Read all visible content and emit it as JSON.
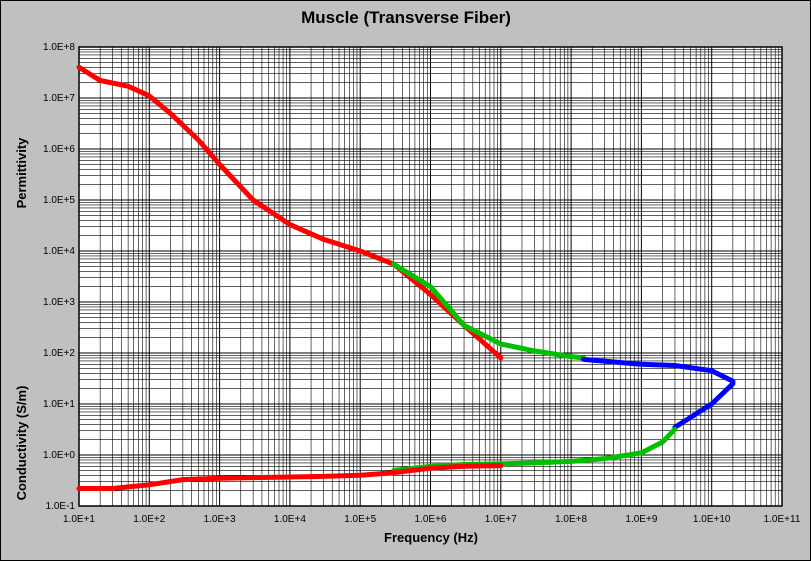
{
  "chart_data": {
    "type": "line",
    "title": "Muscle (Transverse Fiber)",
    "xlabel": "Frequency (Hz)",
    "ylabel_upper": "Permittivity",
    "ylabel_lower": "Conductivity (S/m)",
    "x_scale": "log",
    "y_scale": "log",
    "xlim": [
      10,
      100000000000
    ],
    "ylim": [
      0.1,
      100000000
    ],
    "x_tick_labels": [
      "1.0E+1",
      "1.0E+2",
      "1.0E+3",
      "1.0E+4",
      "1.0E+5",
      "1.0E+6",
      "1.0E+7",
      "1.0E+8",
      "1.0E+9",
      "1.0E+10",
      "1.0E+11"
    ],
    "y_tick_labels": [
      "1.0E-1",
      "1.0E+0",
      "1.0E+1",
      "1.0E+2",
      "1.0E+3",
      "1.0E+4",
      "1.0E+5",
      "1.0E+6",
      "1.0E+7",
      "1.0E+8"
    ],
    "grid": true,
    "background": "#ffffff",
    "frame_color": "#c0c0c0",
    "series": [
      {
        "quantity": "permittivity",
        "color": "#ff0000",
        "x": [
          10,
          20,
          50,
          100,
          200,
          500,
          1000,
          3000,
          10000,
          30000,
          100000,
          300000,
          1000000,
          3000000,
          10000000
        ],
        "y": [
          40000000,
          22000000,
          17000000,
          11000000,
          5000000,
          1500000,
          500000,
          100000,
          33000,
          17000,
          10000,
          5500,
          1400,
          350,
          80
        ]
      },
      {
        "quantity": "permittivity",
        "color": "#00c000",
        "x": [
          300000,
          1000000,
          3000000,
          10000000,
          30000000,
          100000000,
          150000000
        ],
        "y": [
          5500,
          2000,
          350,
          150,
          110,
          85,
          80
        ]
      },
      {
        "quantity": "permittivity",
        "color": "#0000ff",
        "x": [
          150000000,
          500000000,
          1000000000,
          3000000000,
          10000000000,
          20000000000,
          20000000000,
          10000000000,
          3000000000
        ],
        "y": [
          75,
          65,
          60,
          57,
          45,
          28,
          25,
          10,
          3.5
        ]
      },
      {
        "quantity": "conductivity",
        "color": "#00c000",
        "x": [
          300000,
          1000000,
          3000000,
          10000000,
          30000000,
          100000000,
          300000000,
          1000000000,
          2000000000,
          3000000000
        ],
        "y": [
          0.5,
          0.6,
          0.65,
          0.67,
          0.7,
          0.75,
          0.85,
          1.1,
          1.8,
          3.2
        ]
      },
      {
        "quantity": "conductivity",
        "color": "#ff0000",
        "x": [
          10,
          30,
          100,
          300,
          1000,
          3000,
          10000,
          30000,
          100000,
          300000,
          1000000,
          3000000,
          10000000
        ],
        "y": [
          0.22,
          0.22,
          0.26,
          0.33,
          0.35,
          0.36,
          0.37,
          0.38,
          0.4,
          0.45,
          0.55,
          0.6,
          0.62
        ]
      }
    ]
  }
}
